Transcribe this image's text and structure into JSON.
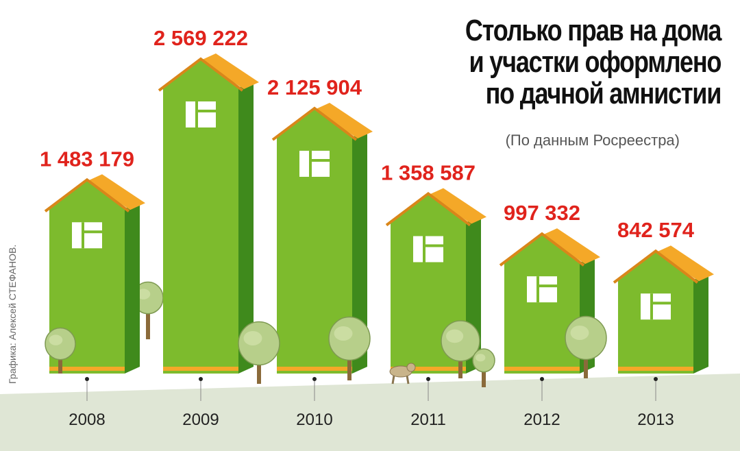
{
  "title_lines": [
    "Столько прав на дома",
    "и участки оформлено",
    "по дачной амнистии"
  ],
  "subtitle": "(По данным Росреестра)",
  "credit": "Графика: Алексей СТЕФАНОВ.",
  "colors": {
    "house_front": "#7dbb2d",
    "house_side": "#3f8a1c",
    "roof": "#f4a828",
    "roof_dark": "#d9861a",
    "value_label": "#e0231c",
    "ground": "#dfe6d5",
    "tree_crown": "#b7cf8a",
    "tree_trunk": "#8a6a3a"
  },
  "chart_data": {
    "type": "bar",
    "title": "Столько прав на дома и участки оформлено по дачной амнистии",
    "subtitle": "(По данным Росреестра)",
    "categories": [
      "2008",
      "2009",
      "2010",
      "2011",
      "2012",
      "2013"
    ],
    "values": [
      1483179,
      2569222,
      2125904,
      1358587,
      997332,
      842574
    ],
    "value_labels": [
      "1 483 179",
      "2 569 222",
      "2 125 904",
      "1 358 587",
      "997 332",
      "842 574"
    ],
    "xlabel": "",
    "ylabel": "",
    "grid": false,
    "legend": "none"
  }
}
